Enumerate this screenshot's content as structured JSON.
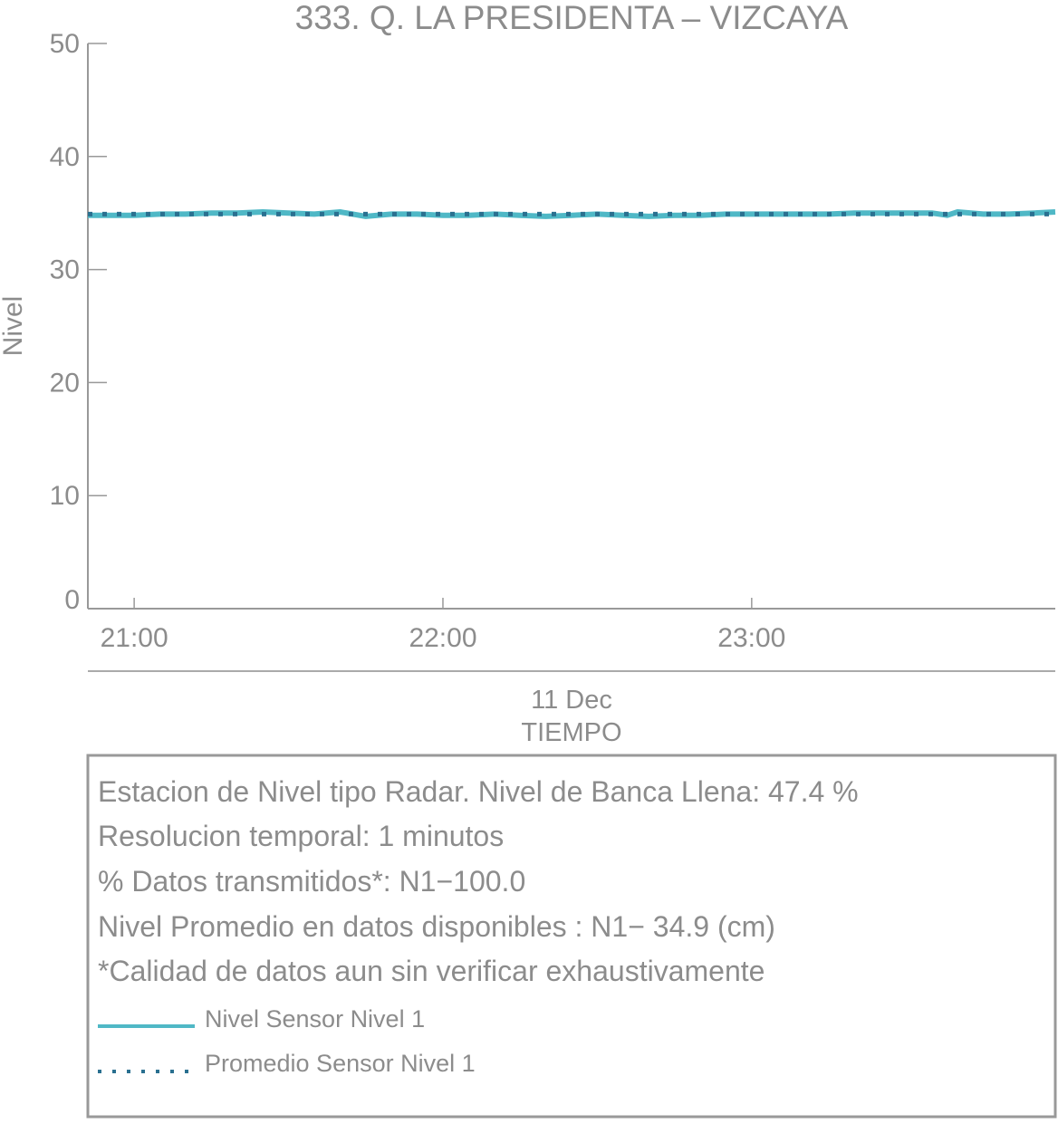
{
  "chart_data": {
    "type": "line",
    "title": "333. Q. LA PRESIDENTA – VIZCAYA",
    "xlabel": "TIEMPO",
    "xdate": "11 Dec",
    "ylabel": "Nivel",
    "ylim": [
      0,
      50
    ],
    "yticks": [
      "0",
      "10",
      "20",
      "30",
      "40",
      "50"
    ],
    "xlim": [
      "20:51",
      "23:59"
    ],
    "xticks": [
      "21:00",
      "22:00",
      "23:00"
    ],
    "grid": false,
    "legend_placement": "bottom",
    "series": [
      {
        "name": "Nivel Sensor Nivel 1",
        "style": "solid",
        "color": "#4fb8c6",
        "x": [
          "20:51",
          "20:55",
          "21:00",
          "21:05",
          "21:10",
          "21:15",
          "21:20",
          "21:25",
          "21:30",
          "21:35",
          "21:40",
          "21:45",
          "21:50",
          "21:55",
          "22:00",
          "22:05",
          "22:10",
          "22:15",
          "22:20",
          "22:25",
          "22:30",
          "22:35",
          "22:40",
          "22:45",
          "22:50",
          "22:55",
          "23:00",
          "23:05",
          "23:10",
          "23:15",
          "23:20",
          "23:25",
          "23:30",
          "23:35",
          "23:38",
          "23:40",
          "23:45",
          "23:50",
          "23:55",
          "23:59"
        ],
        "y": [
          34.8,
          34.8,
          34.8,
          34.9,
          34.9,
          35.0,
          35.0,
          35.1,
          35.0,
          34.9,
          35.1,
          34.7,
          34.9,
          34.9,
          34.8,
          34.8,
          34.9,
          34.8,
          34.7,
          34.8,
          34.9,
          34.8,
          34.7,
          34.8,
          34.8,
          34.9,
          34.9,
          34.9,
          34.9,
          34.9,
          35.0,
          35.0,
          35.0,
          35.0,
          34.8,
          35.1,
          34.9,
          34.9,
          35.0,
          35.1
        ]
      },
      {
        "name": "Promedio Sensor Nivel 1",
        "style": "dotted",
        "color": "#2a7090",
        "x": [
          "20:51",
          "23:59"
        ],
        "y": [
          34.9,
          34.9
        ]
      }
    ]
  },
  "info": {
    "lines": [
      "Estacion de Nivel tipo Radar. Nivel de Banca Llena: 47.4 %",
      "Resolucion temporal: 1 minutos",
      "% Datos transmitidos*: N1−100.0",
      "Nivel Promedio en datos disponibles : N1− 34.9 (cm)",
      "*Calidad de datos aun sin verificar exhaustivamente"
    ]
  }
}
